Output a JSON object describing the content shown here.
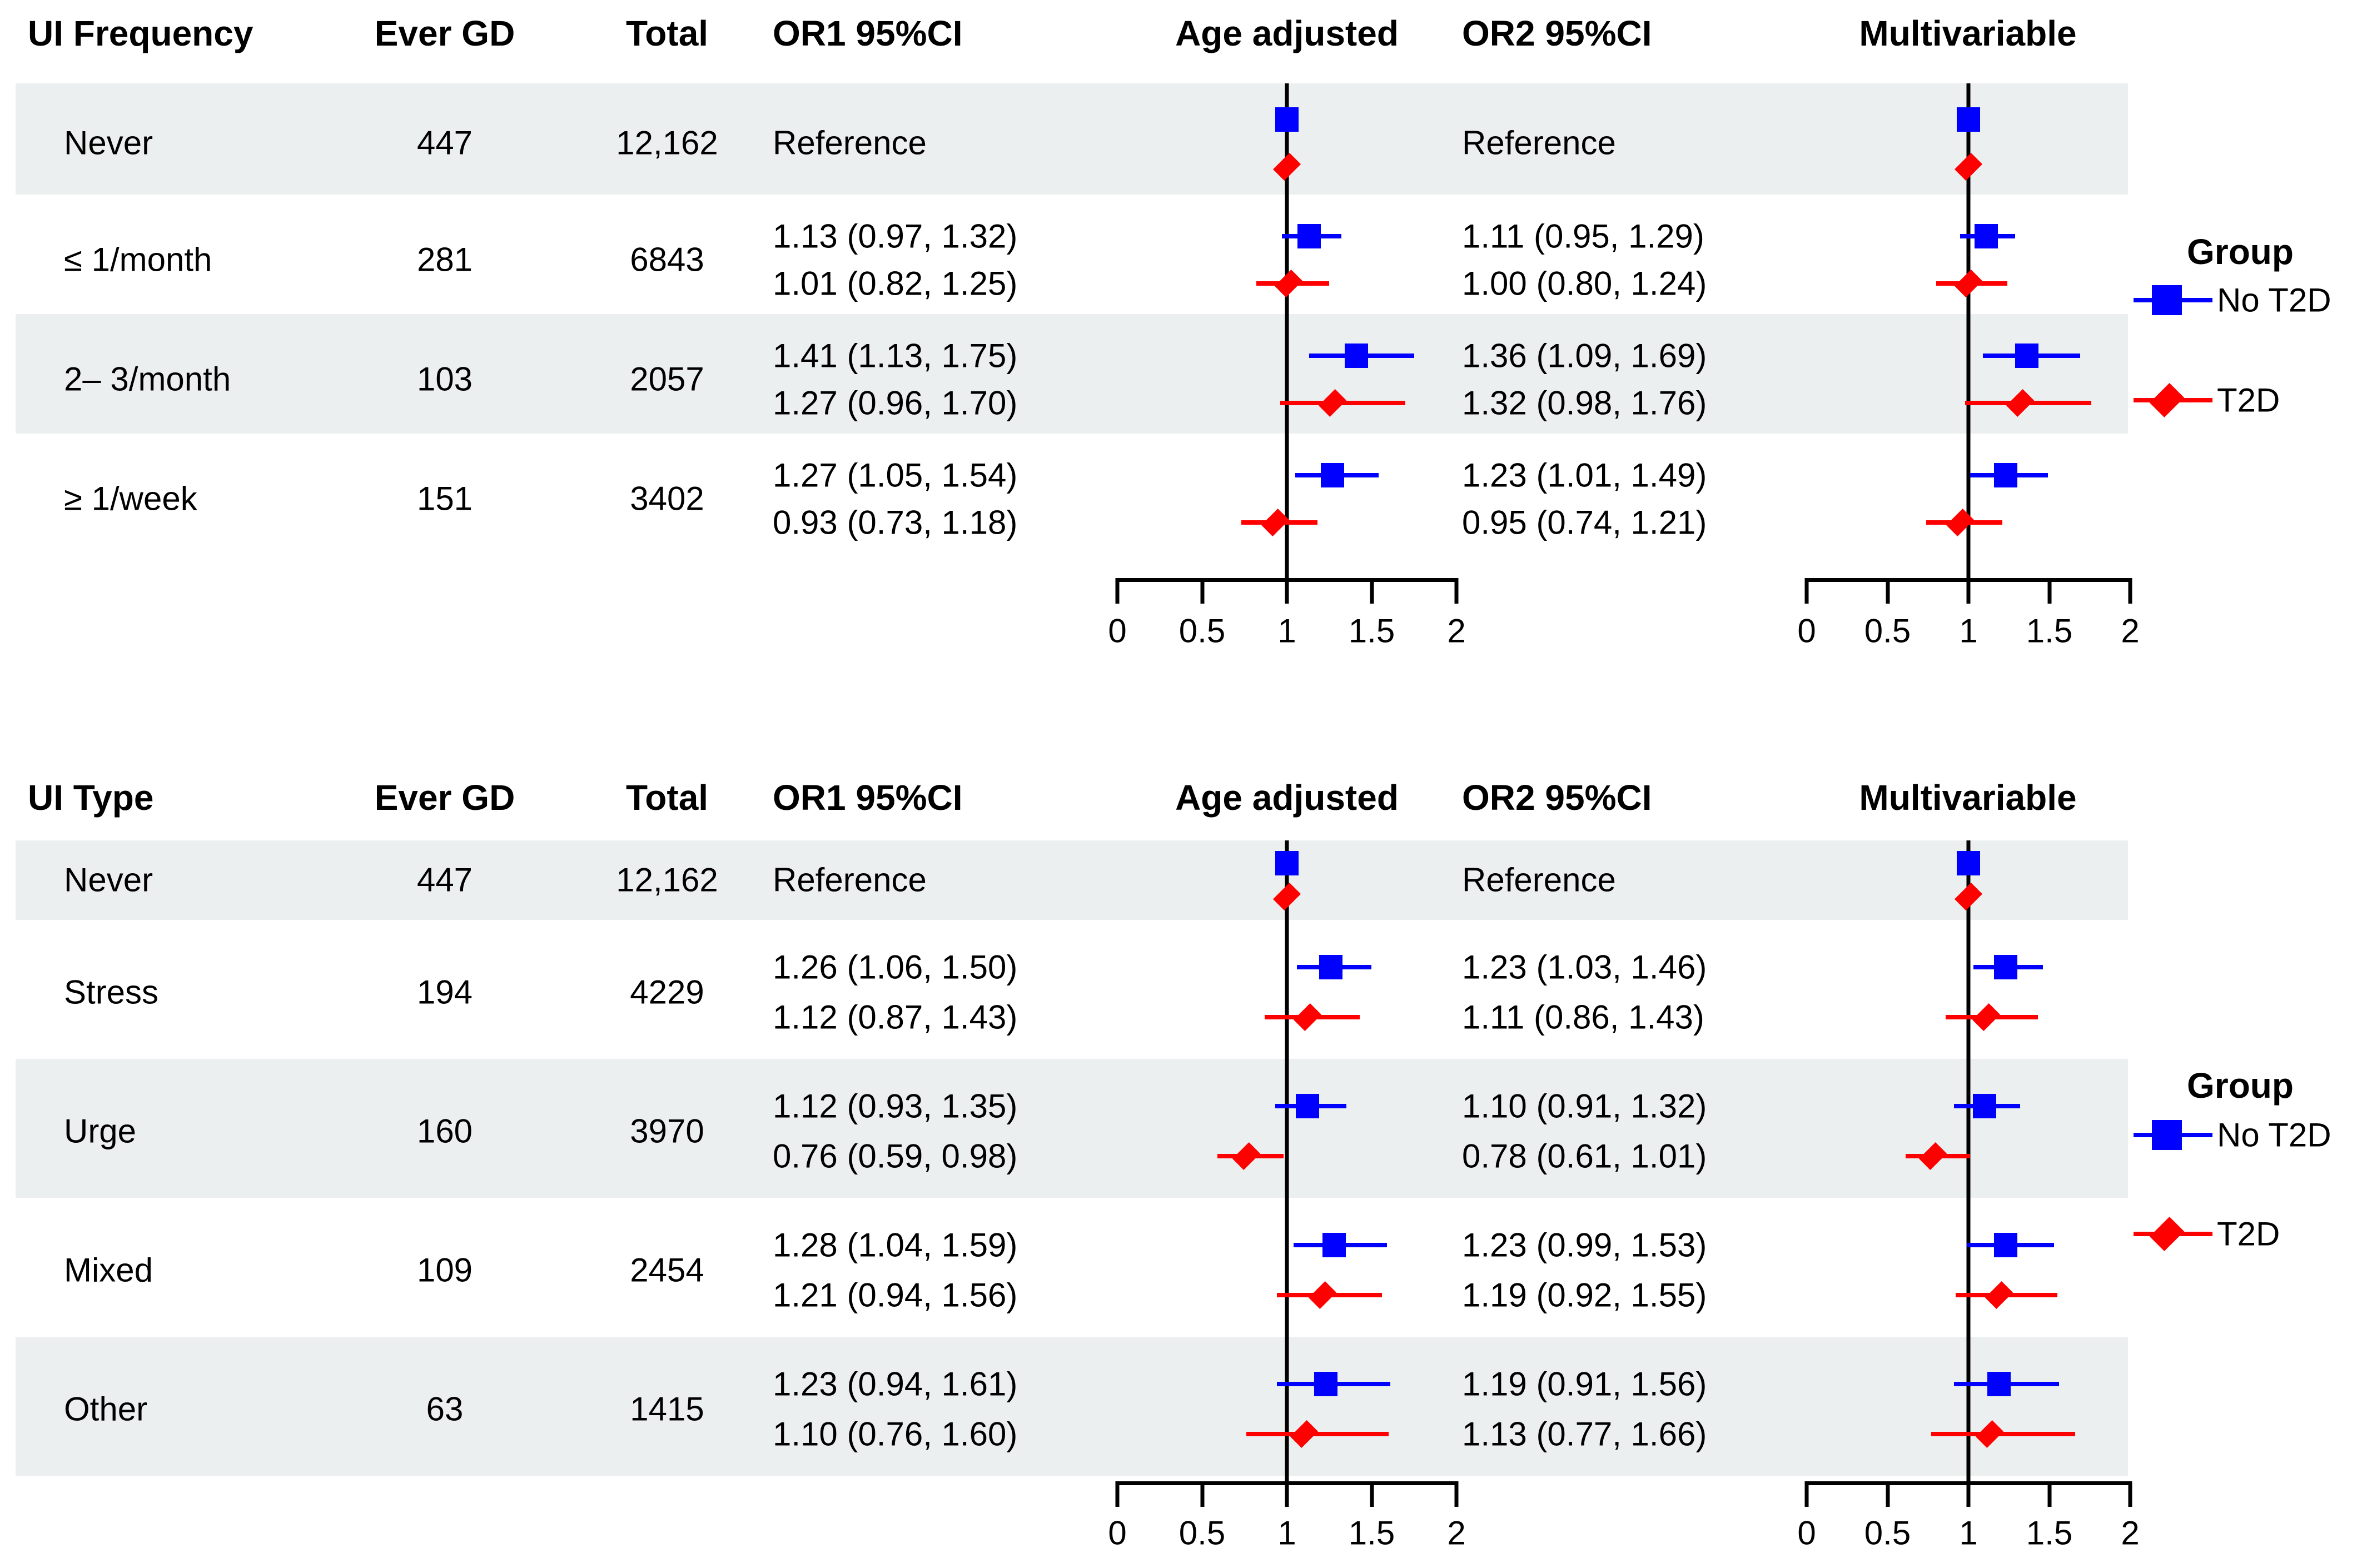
{
  "colors": {
    "no_t2d": "#0000FF",
    "t2d": "#FF0000",
    "row_shade": "#ECEFEF",
    "text": "#000000",
    "axis": "#000000"
  },
  "chart_data": [
    {
      "type": "scatter",
      "variant": "forest",
      "panel_title": "UI Frequency",
      "columns": [
        "UI Frequency",
        "Ever GD",
        "Total",
        "OR1 95%CI",
        "Age adjusted",
        "OR2 95%CI",
        "Multivariable"
      ],
      "x_ticks": [
        "0",
        "0.5",
        "1",
        "1.5",
        "2"
      ],
      "xlim": [
        0,
        2
      ],
      "ref_line": 1,
      "grid": false,
      "legend": {
        "title": "Group",
        "entries": [
          "No T2D",
          "T2D"
        ],
        "position": "right"
      },
      "rows": [
        {
          "label": "Never",
          "ever_gd": "447",
          "total": "12,162",
          "shaded": true,
          "reference": true,
          "or1_text": "Reference",
          "or2_text": "Reference",
          "groups": [
            {
              "name": "No T2D",
              "or1": 1,
              "or1_ci": [
                1,
                1
              ],
              "or2": 1,
              "or2_ci": [
                1,
                1
              ]
            },
            {
              "name": "T2D",
              "or1": 1,
              "or1_ci": [
                1,
                1
              ],
              "or2": 1,
              "or2_ci": [
                1,
                1
              ]
            }
          ]
        },
        {
          "label": "≤ 1/month",
          "ever_gd": "281",
          "total": "6843",
          "shaded": false,
          "groups": [
            {
              "name": "No T2D",
              "or1": 1.13,
              "or1_ci": [
                0.97,
                1.32
              ],
              "or1_text": "1.13 (0.97, 1.32)",
              "or2": 1.11,
              "or2_ci": [
                0.95,
                1.29
              ],
              "or2_text": "1.11 (0.95, 1.29)"
            },
            {
              "name": "T2D",
              "or1": 1.01,
              "or1_ci": [
                0.82,
                1.25
              ],
              "or1_text": "1.01 (0.82, 1.25)",
              "or2": 1.0,
              "or2_ci": [
                0.8,
                1.24
              ],
              "or2_text": "1.00 (0.80, 1.24)"
            }
          ]
        },
        {
          "label": "2– 3/month",
          "ever_gd": "103",
          "total": "2057",
          "shaded": true,
          "groups": [
            {
              "name": "No T2D",
              "or1": 1.41,
              "or1_ci": [
                1.13,
                1.75
              ],
              "or1_text": "1.41 (1.13, 1.75)",
              "or2": 1.36,
              "or2_ci": [
                1.09,
                1.69
              ],
              "or2_text": "1.36 (1.09, 1.69)"
            },
            {
              "name": "T2D",
              "or1": 1.27,
              "or1_ci": [
                0.96,
                1.7
              ],
              "or1_text": "1.27 (0.96, 1.70)",
              "or2": 1.32,
              "or2_ci": [
                0.98,
                1.76
              ],
              "or2_text": "1.32 (0.98, 1.76)"
            }
          ]
        },
        {
          "label": "≥ 1/week",
          "ever_gd": "151",
          "total": "3402",
          "shaded": false,
          "groups": [
            {
              "name": "No T2D",
              "or1": 1.27,
              "or1_ci": [
                1.05,
                1.54
              ],
              "or1_text": "1.27 (1.05, 1.54)",
              "or2": 1.23,
              "or2_ci": [
                1.01,
                1.49
              ],
              "or2_text": "1.23 (1.01, 1.49)"
            },
            {
              "name": "T2D",
              "or1": 0.93,
              "or1_ci": [
                0.73,
                1.18
              ],
              "or1_text": "0.93 (0.73, 1.18)",
              "or2": 0.95,
              "or2_ci": [
                0.74,
                1.21
              ],
              "or2_text": "0.95 (0.74, 1.21)"
            }
          ]
        }
      ]
    },
    {
      "type": "scatter",
      "variant": "forest",
      "panel_title": "UI Type",
      "columns": [
        "UI Type",
        "Ever GD",
        "Total",
        "OR1 95%CI",
        "Age adjusted",
        "OR2 95%CI",
        "Multivariable"
      ],
      "x_ticks": [
        "0",
        "0.5",
        "1",
        "1.5",
        "2"
      ],
      "xlim": [
        0,
        2
      ],
      "ref_line": 1,
      "grid": false,
      "legend": {
        "title": "Group",
        "entries": [
          "No T2D",
          "T2D"
        ],
        "position": "right"
      },
      "rows": [
        {
          "label": "Never",
          "ever_gd": "447",
          "total": "12,162",
          "shaded": true,
          "reference": true,
          "or1_text": "Reference",
          "or2_text": "Reference",
          "groups": [
            {
              "name": "No T2D",
              "or1": 1,
              "or1_ci": [
                1,
                1
              ],
              "or2": 1,
              "or2_ci": [
                1,
                1
              ]
            },
            {
              "name": "T2D",
              "or1": 1,
              "or1_ci": [
                1,
                1
              ],
              "or2": 1,
              "or2_ci": [
                1,
                1
              ]
            }
          ]
        },
        {
          "label": "Stress",
          "ever_gd": "194",
          "total": "4229",
          "shaded": false,
          "groups": [
            {
              "name": "No T2D",
              "or1": 1.26,
              "or1_ci": [
                1.06,
                1.5
              ],
              "or1_text": "1.26 (1.06, 1.50)",
              "or2": 1.23,
              "or2_ci": [
                1.03,
                1.46
              ],
              "or2_text": "1.23 (1.03, 1.46)"
            },
            {
              "name": "T2D",
              "or1": 1.12,
              "or1_ci": [
                0.87,
                1.43
              ],
              "or1_text": "1.12 (0.87, 1.43)",
              "or2": 1.11,
              "or2_ci": [
                0.86,
                1.43
              ],
              "or2_text": "1.11 (0.86, 1.43)"
            }
          ]
        },
        {
          "label": "Urge",
          "ever_gd": "160",
          "total": "3970",
          "shaded": true,
          "groups": [
            {
              "name": "No T2D",
              "or1": 1.12,
              "or1_ci": [
                0.93,
                1.35
              ],
              "or1_text": "1.12 (0.93, 1.35)",
              "or2": 1.1,
              "or2_ci": [
                0.91,
                1.32
              ],
              "or2_text": "1.10 (0.91, 1.32)"
            },
            {
              "name": "T2D",
              "or1": 0.76,
              "or1_ci": [
                0.59,
                0.98
              ],
              "or1_text": "0.76 (0.59, 0.98)",
              "or2": 0.78,
              "or2_ci": [
                0.61,
                1.01
              ],
              "or2_text": "0.78 (0.61, 1.01)"
            }
          ]
        },
        {
          "label": "Mixed",
          "ever_gd": "109",
          "total": "2454",
          "shaded": false,
          "groups": [
            {
              "name": "No T2D",
              "or1": 1.28,
              "or1_ci": [
                1.04,
                1.59
              ],
              "or1_text": "1.28 (1.04, 1.59)",
              "or2": 1.23,
              "or2_ci": [
                0.99,
                1.53
              ],
              "or2_text": "1.23 (0.99, 1.53)"
            },
            {
              "name": "T2D",
              "or1": 1.21,
              "or1_ci": [
                0.94,
                1.56
              ],
              "or1_text": "1.21 (0.94, 1.56)",
              "or2": 1.19,
              "or2_ci": [
                0.92,
                1.55
              ],
              "or2_text": "1.19 (0.92, 1.55)"
            }
          ]
        },
        {
          "label": "Other",
          "ever_gd": "63",
          "total": "1415",
          "shaded": true,
          "groups": [
            {
              "name": "No T2D",
              "or1": 1.23,
              "or1_ci": [
                0.94,
                1.61
              ],
              "or1_text": "1.23 (0.94, 1.61)",
              "or2": 1.19,
              "or2_ci": [
                0.91,
                1.56
              ],
              "or2_text": "1.19 (0.91, 1.56)"
            },
            {
              "name": "T2D",
              "or1": 1.1,
              "or1_ci": [
                0.76,
                1.6
              ],
              "or1_text": "1.10 (0.76, 1.60)",
              "or2": 1.13,
              "or2_ci": [
                0.77,
                1.66
              ],
              "or2_text": "1.13 (0.77, 1.66)"
            }
          ]
        }
      ]
    }
  ]
}
